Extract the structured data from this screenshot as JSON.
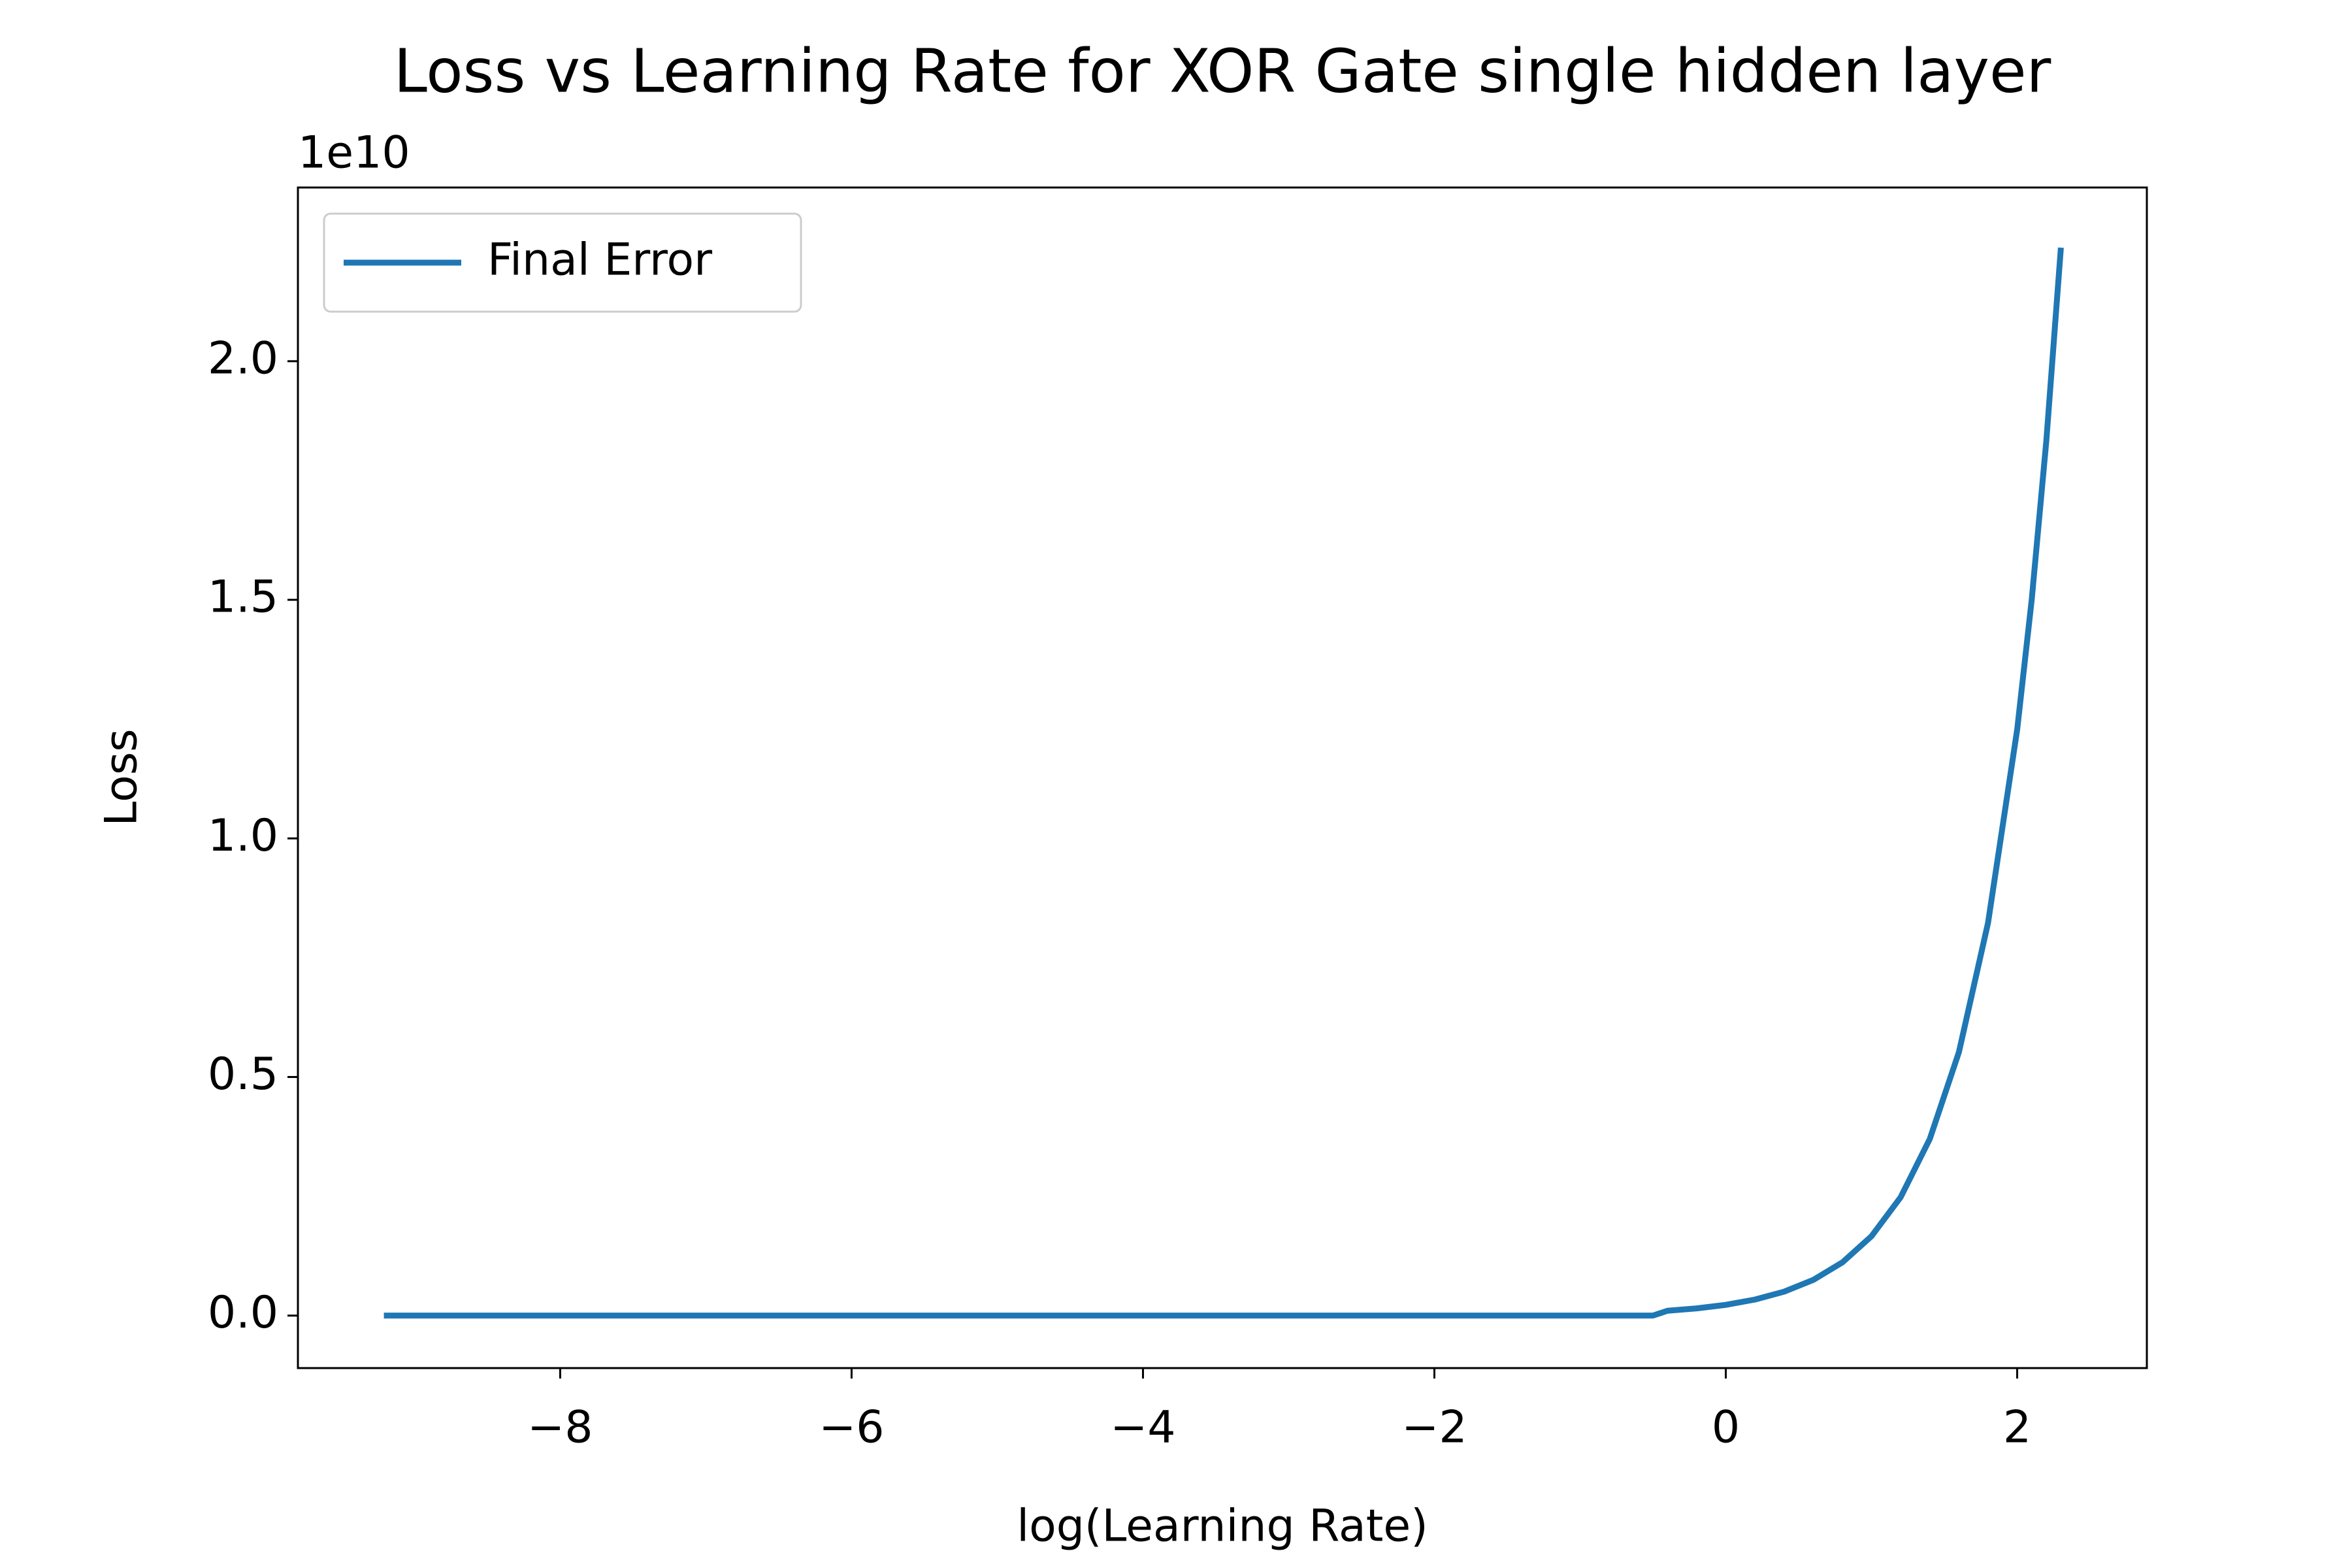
{
  "chart_data": {
    "type": "line",
    "title": "Loss vs Learning Rate for XOR Gate single hidden layer",
    "xlabel": "log(Learning Rate)",
    "ylabel": "Loss",
    "y_offset_text": "1e10",
    "x": [
      -9.21,
      -8,
      -6,
      -4,
      -2,
      -1.7,
      -1,
      -0.5,
      -0.4,
      -0.2,
      0,
      0.2,
      0.4,
      0.6,
      0.8,
      1.0,
      1.2,
      1.4,
      1.6,
      1.8,
      2.0,
      2.1,
      2.2,
      2.3
    ],
    "series": [
      {
        "name": "Final Error",
        "color": "#1f77b4",
        "values": [
          0,
          0,
          0,
          0,
          0,
          0,
          0,
          0,
          0.0101,
          0.0151,
          0.0225,
          0.0336,
          0.0501,
          0.0747,
          0.1114,
          0.1663,
          0.248,
          0.37,
          0.552,
          0.823,
          1.228,
          1.501,
          1.833,
          2.238
        ]
      }
    ],
    "xlim": [
      -9.8,
      2.89
    ],
    "ylim": [
      -0.11,
      2.364
    ],
    "xticks": [
      {
        "value": -8,
        "label": "−8"
      },
      {
        "value": -6,
        "label": "−6"
      },
      {
        "value": -4,
        "label": "−4"
      },
      {
        "value": -2,
        "label": "−2"
      },
      0,
      2
    ],
    "yticks": [
      {
        "value": 0,
        "label": "0.0"
      },
      0.5,
      {
        "value": 1,
        "label": "1.0"
      },
      1.5,
      {
        "value": 2,
        "label": "2.0"
      }
    ],
    "legend": "upper left",
    "grid": false
  }
}
